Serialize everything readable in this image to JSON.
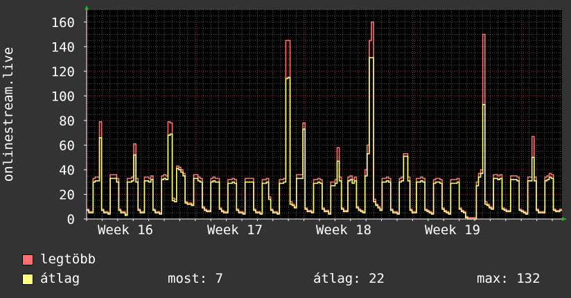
{
  "chart_data": {
    "type": "line",
    "ylabel": "onlinestream.live",
    "ylim": [
      0,
      170
    ],
    "yticks": [
      0,
      20,
      40,
      60,
      80,
      100,
      120,
      140,
      160
    ],
    "x_tick_labels": [
      "Week 16",
      "Week 17",
      "Week 18",
      "Week 19"
    ],
    "grid": true,
    "legend_position": "bottom-left",
    "series": [
      {
        "name": "legtöbb",
        "color": "#ff7070",
        "values": [
          8,
          6,
          6,
          33,
          34,
          34,
          79,
          8,
          6,
          6,
          5,
          36,
          36,
          36,
          33,
          8,
          6,
          6,
          4,
          33,
          33,
          34,
          61,
          33,
          8,
          6,
          6,
          34,
          34,
          33,
          35,
          8,
          6,
          6,
          5,
          35,
          36,
          35,
          79,
          78,
          17,
          16,
          43,
          42,
          40,
          37,
          14,
          13,
          13,
          12,
          36,
          36,
          34,
          33,
          10,
          8,
          7,
          7,
          33,
          34,
          33,
          33,
          9,
          7,
          6,
          6,
          32,
          32,
          33,
          32,
          8,
          6,
          6,
          5,
          33,
          33,
          33,
          33,
          8,
          6,
          6,
          5,
          32,
          32,
          33,
          18,
          8,
          6,
          6,
          5,
          32,
          32,
          33,
          145,
          145,
          14,
          12,
          10,
          36,
          36,
          36,
          78,
          9,
          7,
          7,
          6,
          32,
          32,
          33,
          32,
          9,
          7,
          7,
          5,
          30,
          30,
          32,
          58,
          34,
          9,
          7,
          7,
          34,
          35,
          32,
          34,
          10,
          8,
          7,
          6,
          40,
          60,
          145,
          160,
          16,
          12,
          10,
          8,
          33,
          33,
          34,
          33,
          8,
          6,
          6,
          5,
          33,
          34,
          53,
          53,
          34,
          8,
          6,
          6,
          33,
          33,
          34,
          33,
          8,
          7,
          6,
          5,
          32,
          33,
          33,
          32,
          9,
          7,
          6,
          5,
          32,
          32,
          32,
          33,
          9,
          7,
          6,
          2,
          1,
          1,
          1,
          1,
          30,
          37,
          40,
          150,
          14,
          12,
          10,
          9,
          36,
          36,
          35,
          36,
          9,
          8,
          7,
          7,
          35,
          35,
          35,
          34,
          8,
          7,
          6,
          5,
          34,
          34,
          67,
          34,
          8,
          6,
          6,
          6,
          34,
          35,
          37,
          36,
          8,
          7,
          7,
          8
        ]
      },
      {
        "name": "átlag",
        "color": "#ffff80",
        "values": [
          7,
          5,
          5,
          30,
          31,
          31,
          66,
          7,
          5,
          5,
          4,
          33,
          33,
          33,
          30,
          7,
          5,
          5,
          3,
          30,
          30,
          31,
          52,
          30,
          7,
          5,
          5,
          31,
          31,
          30,
          32,
          7,
          5,
          5,
          4,
          32,
          33,
          32,
          68,
          69,
          15,
          14,
          41,
          40,
          38,
          35,
          13,
          12,
          12,
          11,
          33,
          33,
          31,
          30,
          9,
          7,
          6,
          6,
          30,
          31,
          30,
          30,
          8,
          6,
          5,
          5,
          29,
          29,
          30,
          29,
          7,
          5,
          5,
          4,
          30,
          30,
          30,
          30,
          7,
          5,
          5,
          4,
          29,
          29,
          30,
          16,
          7,
          5,
          5,
          4,
          29,
          29,
          30,
          114,
          115,
          12,
          11,
          9,
          33,
          33,
          33,
          73,
          8,
          6,
          6,
          5,
          29,
          29,
          30,
          29,
          8,
          6,
          6,
          4,
          27,
          27,
          29,
          47,
          31,
          8,
          6,
          6,
          31,
          32,
          29,
          31,
          9,
          7,
          6,
          5,
          35,
          53,
          131,
          131,
          14,
          11,
          9,
          7,
          30,
          30,
          31,
          30,
          7,
          5,
          5,
          4,
          30,
          31,
          51,
          51,
          31,
          7,
          5,
          5,
          30,
          30,
          31,
          30,
          7,
          6,
          5,
          4,
          29,
          30,
          30,
          29,
          8,
          6,
          5,
          4,
          29,
          29,
          29,
          30,
          8,
          6,
          5,
          1,
          0,
          0,
          0,
          0,
          27,
          34,
          37,
          93,
          12,
          11,
          9,
          8,
          33,
          33,
          32,
          33,
          8,
          7,
          6,
          6,
          32,
          32,
          32,
          31,
          7,
          6,
          5,
          4,
          31,
          31,
          50,
          31,
          7,
          5,
          5,
          5,
          31,
          32,
          34,
          33,
          7,
          6,
          6,
          7
        ]
      }
    ]
  },
  "legend": {
    "items": [
      {
        "label": "legtöbb",
        "color": "#ff7070"
      },
      {
        "label": "átlag",
        "color": "#ffff80"
      }
    ],
    "stats": [
      {
        "label": "most: 7"
      },
      {
        "label": "átlag: 22"
      },
      {
        "label": "max: 132"
      }
    ]
  }
}
